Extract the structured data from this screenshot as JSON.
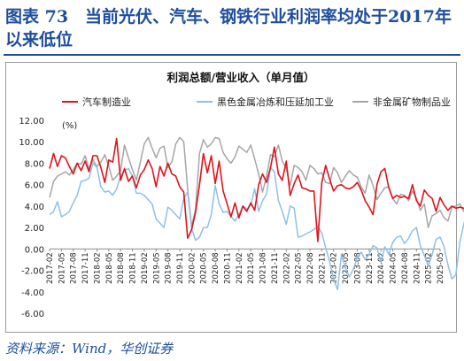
{
  "figure": {
    "title": "图表 73　当前光伏、汽车、钢铁行业利润率均处于2017年以来低位",
    "source": "资料来源：Wind，华创证券"
  },
  "chart_data": {
    "type": "line",
    "title": "利润总额/营业收入（单月值）",
    "unit_label": "(%)",
    "xlabel": "",
    "ylabel": "",
    "ylim": [
      -6,
      12
    ],
    "yticks": [
      "12.00",
      "10.00",
      "8.00",
      "6.00",
      "4.00",
      "2.00",
      "0.00",
      "-2.00",
      "-4.00",
      "-6.00"
    ],
    "grid": false,
    "legend_position": "top",
    "xtick_labels": [
      "2017-02",
      "2017-05",
      "2017-08",
      "2017-11",
      "2018-02",
      "2018-05",
      "2018-08",
      "2018-11",
      "2019-02",
      "2019-05",
      "2019-08",
      "2019-11",
      "2020-02",
      "2020-05",
      "2020-08",
      "2020-11",
      "2021-02",
      "2021-05",
      "2021-08",
      "2021-11",
      "2022-02",
      "2022-05",
      "2022-08",
      "2022-11",
      "2023-02",
      "2023-05",
      "2023-08",
      "2023-11",
      "2024-02",
      "2024-05",
      "2024-08",
      "2024-11",
      "2025-02",
      "2025-05"
    ],
    "x_start": "2017-02",
    "x_end": "2025-05",
    "series": [
      {
        "name": "汽车制造业",
        "color": "#e0141e",
        "values": [
          7.5,
          8.9,
          7.7,
          8.7,
          8.5,
          7.7,
          7.0,
          8.0,
          7.3,
          8.2,
          7.2,
          8.7,
          8.7,
          7.6,
          6.2,
          8.3,
          8.1,
          10.3,
          6.4,
          7.5,
          6.3,
          6.8,
          5.7,
          6.9,
          7.4,
          8.3,
          7.5,
          5.8,
          7.7,
          6.8,
          8.0,
          7.0,
          6.8,
          5.8,
          5.3,
          1.0,
          1.8,
          3.4,
          6.0,
          8.9,
          7.1,
          8.7,
          6.1,
          8.2,
          5.4,
          4.2,
          3.0,
          4.3,
          2.9,
          4.0,
          3.5,
          4.3,
          3.6,
          6.0,
          7.0,
          6.2,
          7.6,
          9.5,
          7.0,
          6.4,
          8.2,
          5.0,
          6.1,
          6.9,
          5.7,
          5.6,
          5.4,
          5.4,
          0.7,
          6.2,
          7.8,
          6.5,
          5.4,
          5.9,
          6.0,
          5.7,
          5.6,
          5.8,
          6.2,
          5.5,
          4.5,
          3.9,
          3.2,
          6.0,
          7.2,
          7.5,
          5.7,
          4.7,
          5.0,
          4.8,
          4.9,
          4.7,
          6.0,
          4.5,
          4.0,
          5.5,
          5.0,
          4.7,
          3.5,
          4.8,
          4.1,
          3.6,
          4.0,
          3.8,
          3.9,
          3.8,
          3.7,
          4.1,
          4.2,
          3.4,
          4.5,
          5.2
        ]
      },
      {
        "name": "黑色金属冶炼和压延加工业",
        "color": "#8fc0e6",
        "values": [
          3.2,
          3.5,
          4.4,
          3.0,
          3.2,
          3.5,
          4.3,
          5.0,
          6.3,
          6.4,
          6.6,
          8.0,
          7.6,
          5.8,
          5.3,
          5.4,
          5.0,
          5.6,
          6.8,
          7.3,
          7.5,
          6.8,
          5.2,
          5.2,
          5.0,
          4.6,
          4.2,
          2.8,
          2.4,
          2.0,
          3.9,
          3.6,
          3.2,
          2.8,
          4.7,
          5.3,
          1.9,
          0.8,
          1.1,
          2.0,
          2.0,
          3.2,
          5.9,
          4.2,
          3.4,
          3.5,
          3.0,
          2.6,
          3.2,
          4.0,
          3.7,
          4.1,
          5.6,
          3.5,
          4.5,
          5.1,
          7.6,
          7.2,
          4.5,
          3.5,
          2.3,
          4.0,
          3.8,
          1.1,
          1.2,
          1.4,
          1.6,
          1.8,
          2.1,
          1.5,
          0.1,
          -1.2,
          -2.8,
          -3.8,
          -0.5,
          -1.8,
          -2.6,
          -1.9,
          -0.8,
          -0.3,
          -1.0,
          -0.5,
          0.3,
          0.1,
          -1.2,
          0.2,
          -0.5,
          0.6,
          1.1,
          1.2,
          0.5,
          1.0,
          1.7,
          2.0,
          0.3,
          -0.6,
          -1.6,
          -0.5,
          0.9,
          1.1,
          0.2,
          -1.5,
          -2.8,
          -2.4,
          0.6,
          2.3,
          3.6,
          1.3,
          0.3,
          0.1,
          1.2,
          2.0,
          2.3
        ]
      },
      {
        "name": "非金属矿物制品业",
        "color": "#a6a6a6",
        "values": [
          4.8,
          6.3,
          6.8,
          7.0,
          7.2,
          6.9,
          7.4,
          8.0,
          7.9,
          8.7,
          7.5,
          8.3,
          7.7,
          8.1,
          8.8,
          7.7,
          6.4,
          6.8,
          7.3,
          9.7,
          8.5,
          7.4,
          6.4,
          8.1,
          9.8,
          10.4,
          9.4,
          8.5,
          9.4,
          9.6,
          7.6,
          8.1,
          9.8,
          10.4,
          10.0,
          5.6,
          2.1,
          3.7,
          8.9,
          10.2,
          9.5,
          9.8,
          10.4,
          10.3,
          9.0,
          8.4,
          8.0,
          8.6,
          9.6,
          9.3,
          9.0,
          9.7,
          8.4,
          7.0,
          5.3,
          6.8,
          8.8,
          8.6,
          9.7,
          8.2,
          7.5,
          5.9,
          7.8,
          7.6,
          7.2,
          6.4,
          7.8,
          7.5,
          7.0,
          7.1,
          6.2,
          6.1,
          7.6,
          7.1,
          6.2,
          6.8,
          7.3,
          6.9,
          6.7,
          5.8,
          5.2,
          6.9,
          5.9,
          4.6,
          5.2,
          5.7,
          5.8,
          4.7,
          4.2,
          5.1,
          5.0,
          4.5,
          5.4,
          4.7,
          3.6,
          4.2,
          2.0,
          3.1,
          3.3,
          3.6,
          2.9,
          2.6,
          3.9,
          4.0,
          4.2,
          3.5,
          5.0,
          4.7,
          3.1,
          3.5,
          2.0,
          3.1,
          3.8
        ]
      }
    ]
  }
}
